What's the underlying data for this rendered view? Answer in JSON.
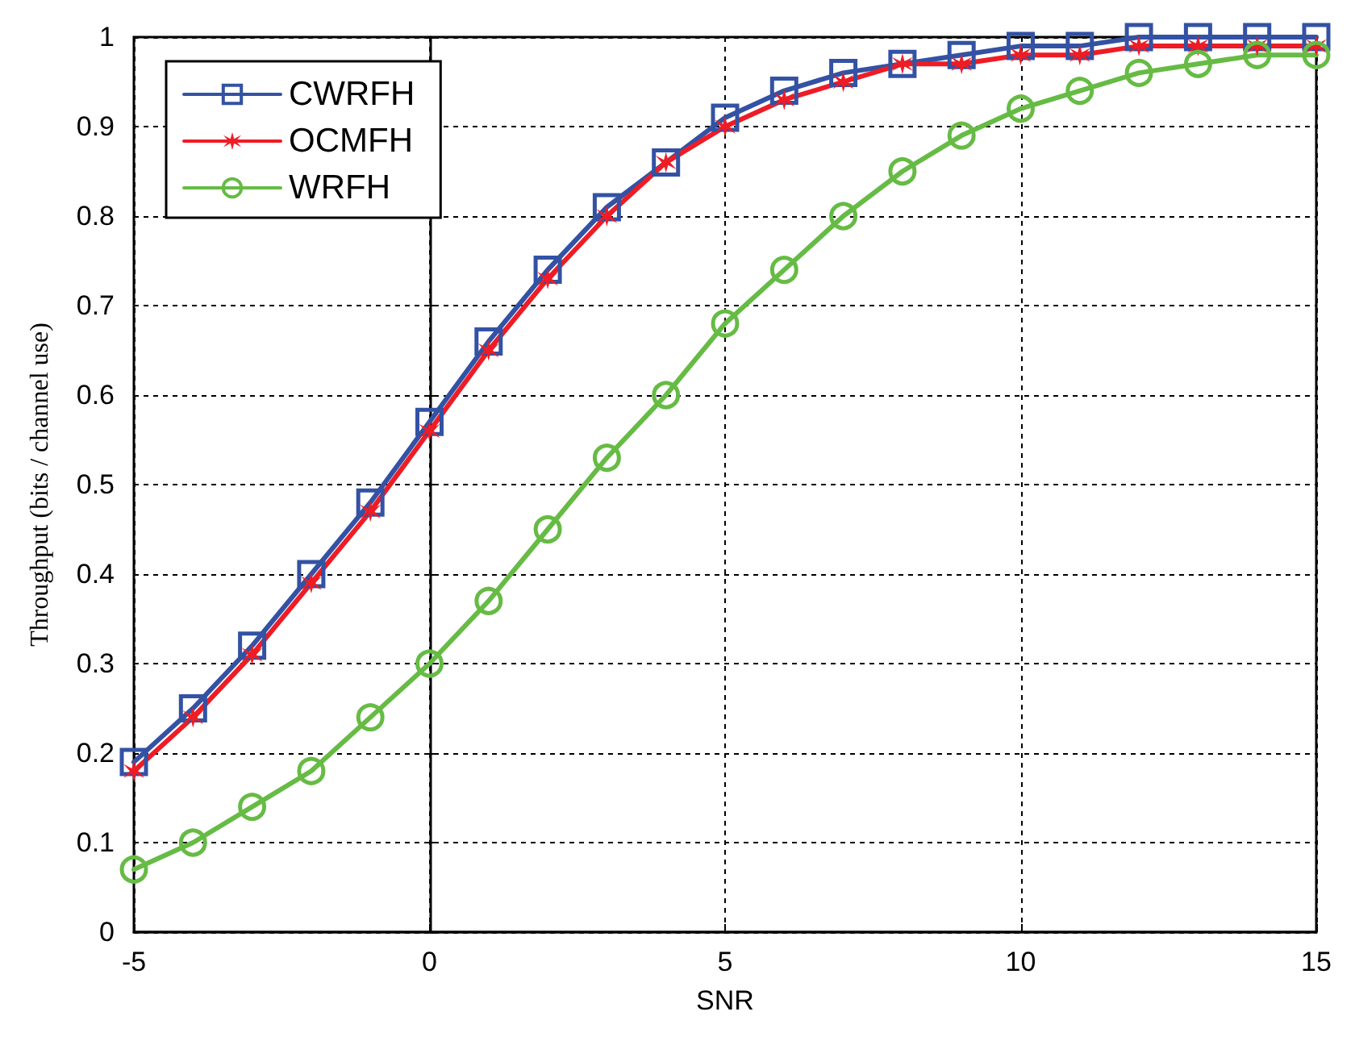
{
  "chart_data": {
    "type": "line",
    "xlabel": "SNR",
    "ylabel": "Throughput (bits / channel use)",
    "x": [
      -5,
      -4,
      -3,
      -2,
      -1,
      0,
      1,
      2,
      3,
      4,
      5,
      6,
      7,
      8,
      9,
      10,
      11,
      12,
      13,
      14,
      15
    ],
    "series": [
      {
        "name": "CWRFH",
        "color": "#3352a4",
        "marker": "square",
        "values": [
          0.19,
          0.25,
          0.32,
          0.4,
          0.48,
          0.57,
          0.66,
          0.74,
          0.81,
          0.86,
          0.91,
          0.94,
          0.96,
          0.97,
          0.98,
          0.99,
          0.99,
          1.0,
          1.0,
          1.0,
          1.0
        ]
      },
      {
        "name": "OCMFH",
        "color": "#ee1c25",
        "marker": "cross",
        "values": [
          0.18,
          0.24,
          0.31,
          0.39,
          0.47,
          0.56,
          0.65,
          0.73,
          0.8,
          0.86,
          0.9,
          0.93,
          0.95,
          0.97,
          0.97,
          0.98,
          0.98,
          0.99,
          0.99,
          0.99,
          0.99
        ]
      },
      {
        "name": "WRFH",
        "color": "#66bb44",
        "marker": "circle",
        "values": [
          0.07,
          0.1,
          0.14,
          0.18,
          0.24,
          0.3,
          0.37,
          0.45,
          0.53,
          0.6,
          0.68,
          0.74,
          0.8,
          0.85,
          0.89,
          0.92,
          0.94,
          0.96,
          0.97,
          0.98,
          0.98
        ]
      }
    ],
    "xlim": [
      -5,
      15
    ],
    "xticks": [
      -5,
      0,
      5,
      10,
      15
    ],
    "ylim": [
      0,
      1
    ],
    "yticks": [
      0,
      0.1,
      0.2,
      0.3,
      0.4,
      0.5,
      0.6,
      0.7,
      0.8,
      0.9,
      1
    ],
    "grid": true,
    "legend": "top left",
    "line_style": "solid"
  }
}
